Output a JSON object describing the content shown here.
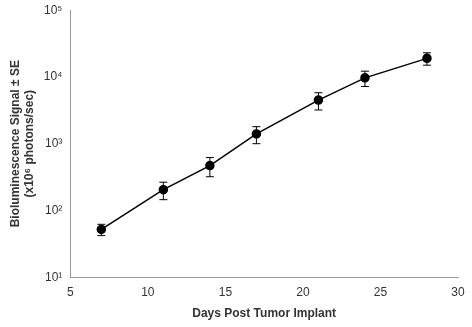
{
  "chart_data": {
    "type": "line",
    "xlabel": "Days Post Tumor Implant",
    "ylabel": [
      "Bioluminescence Signal ± SE",
      "(x10⁶ photons/sec)"
    ],
    "x": [
      7,
      11,
      14,
      17,
      21,
      24,
      28
    ],
    "values": [
      52,
      205,
      470,
      1400,
      4500,
      9700,
      19000
    ],
    "errors": [
      10,
      60,
      150,
      400,
      1300,
      2500,
      4000
    ],
    "color": "#000000",
    "marker": "circle",
    "line_style": "solid",
    "log": "y",
    "grid": false,
    "xlim": [
      5,
      30
    ],
    "xticks": [
      5,
      10,
      15,
      20,
      25,
      30
    ],
    "ylim": [
      10,
      100000
    ],
    "yticks": [
      {
        "value": 10,
        "label": "10¹"
      },
      {
        "value": 100,
        "label": "10²"
      },
      {
        "value": 1000,
        "label": "10³"
      },
      {
        "value": 10000,
        "label": "10⁴"
      },
      {
        "value": 100000,
        "label": "10⁵"
      }
    ]
  }
}
